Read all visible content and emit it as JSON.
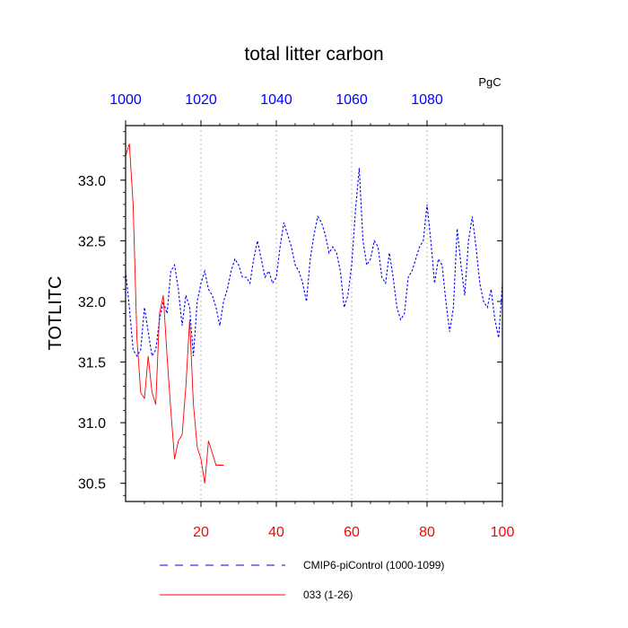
{
  "chart_data": {
    "type": "line",
    "title": "total litter carbon",
    "units": "PgC",
    "ylabel": "TOTLITC",
    "ylim": [
      30.35,
      33.45
    ],
    "xlim": [
      0,
      100
    ],
    "yticks": [
      30.5,
      31.0,
      31.5,
      32.0,
      32.5,
      33.0
    ],
    "ytick_labels": [
      "30.5",
      "31.0",
      "31.5",
      "32.0",
      "32.5",
      "33.0"
    ],
    "xticks_bottom": [
      20,
      40,
      60,
      80,
      100
    ],
    "xtick_labels_bottom": [
      "20",
      "40",
      "60",
      "80",
      "100"
    ],
    "xticks_top": [
      0,
      20,
      40,
      60,
      80
    ],
    "xtick_labels_top": [
      "1000",
      "1020",
      "1040",
      "1060",
      "1080"
    ],
    "grid": "vertical dashed at bottom ticks",
    "legend_position": "bottom",
    "colors": {
      "series1": "#0000ff",
      "series2": "#ff0000"
    },
    "series": [
      {
        "name": "CMIP6-piControl (1000-1099)",
        "style": "dashed",
        "x": [
          0,
          1,
          2,
          3,
          4,
          5,
          6,
          7,
          8,
          9,
          10,
          11,
          12,
          13,
          14,
          15,
          16,
          17,
          18,
          19,
          20,
          21,
          22,
          23,
          24,
          25,
          26,
          27,
          28,
          29,
          30,
          31,
          32,
          33,
          34,
          35,
          36,
          37,
          38,
          39,
          40,
          41,
          42,
          43,
          44,
          45,
          46,
          47,
          48,
          49,
          50,
          51,
          52,
          53,
          54,
          55,
          56,
          57,
          58,
          59,
          60,
          61,
          62,
          63,
          64,
          65,
          66,
          67,
          68,
          69,
          70,
          71,
          72,
          73,
          74,
          75,
          76,
          77,
          78,
          79,
          80,
          81,
          82,
          83,
          84,
          85,
          86,
          87,
          88,
          89,
          90,
          91,
          92,
          93,
          94,
          95,
          96,
          97,
          98,
          99,
          100
        ],
        "y": [
          32.25,
          31.95,
          31.6,
          31.55,
          31.6,
          31.95,
          31.75,
          31.55,
          31.6,
          31.85,
          32.0,
          31.9,
          32.25,
          32.3,
          32.1,
          31.8,
          32.05,
          31.95,
          31.55,
          32.0,
          32.15,
          32.25,
          32.1,
          32.05,
          31.95,
          31.8,
          32.0,
          32.1,
          32.25,
          32.35,
          32.3,
          32.2,
          32.2,
          32.15,
          32.35,
          32.5,
          32.35,
          32.2,
          32.25,
          32.15,
          32.2,
          32.45,
          32.65,
          32.55,
          32.45,
          32.3,
          32.25,
          32.15,
          32.0,
          32.35,
          32.55,
          32.7,
          32.65,
          32.55,
          32.4,
          32.45,
          32.4,
          32.25,
          31.95,
          32.05,
          32.3,
          32.75,
          33.1,
          32.5,
          32.3,
          32.35,
          32.5,
          32.45,
          32.2,
          32.15,
          32.4,
          32.2,
          31.95,
          31.85,
          31.9,
          32.2,
          32.25,
          32.35,
          32.45,
          32.5,
          32.8,
          32.5,
          32.15,
          32.35,
          32.3,
          32.0,
          31.75,
          31.95,
          32.6,
          32.3,
          32.05,
          32.5,
          32.7,
          32.45,
          32.15,
          32.0,
          31.95,
          32.1,
          31.85,
          31.7,
          32.15
        ]
      },
      {
        "name": "033 (1-26)",
        "style": "solid",
        "x": [
          0,
          1,
          2,
          3,
          4,
          5,
          6,
          7,
          8,
          9,
          10,
          11,
          12,
          13,
          14,
          15,
          16,
          17,
          18,
          19,
          20,
          21,
          22,
          23,
          24,
          25,
          26
        ],
        "y": [
          33.2,
          33.3,
          32.8,
          31.7,
          31.25,
          31.2,
          31.55,
          31.25,
          31.15,
          31.9,
          32.05,
          31.55,
          31.1,
          30.7,
          30.85,
          30.9,
          31.3,
          31.85,
          31.15,
          30.8,
          30.7,
          30.5,
          30.85,
          30.75,
          30.65,
          30.65,
          30.65
        ]
      }
    ]
  }
}
